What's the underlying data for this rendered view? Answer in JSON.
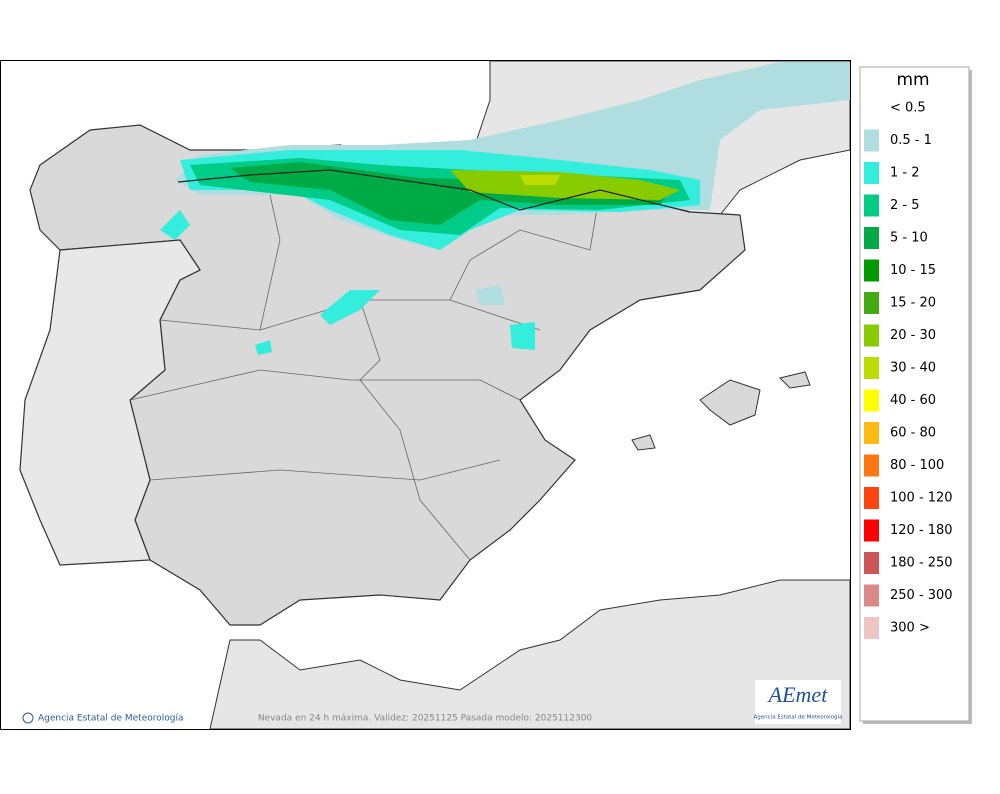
{
  "map": {
    "caption": "Nevada en 24 h máxima. Validez: 20251125 Pasada modelo: 2025112300",
    "credit": "Agencia Estatal de Meteorología",
    "logo": {
      "text": "AEmet",
      "subtitle": "Agencia Estatal de Meteorología"
    }
  },
  "legend": {
    "unit": "mm",
    "items": [
      {
        "label": "< 0.5",
        "color": "#ffffff"
      },
      {
        "label": "0.5 - 1",
        "color": "#b0dde0"
      },
      {
        "label": "1 - 2",
        "color": "#33eedd"
      },
      {
        "label": "2 - 5",
        "color": "#00cc88"
      },
      {
        "label": "5 - 10",
        "color": "#00aa44"
      },
      {
        "label": "10 - 15",
        "color": "#009900"
      },
      {
        "label": "15 - 20",
        "color": "#44aa11"
      },
      {
        "label": "20 - 30",
        "color": "#88cc00"
      },
      {
        "label": "30 - 40",
        "color": "#bbdd00"
      },
      {
        "label": "40 - 60",
        "color": "#ffff00"
      },
      {
        "label": "60 - 80",
        "color": "#ffbb11"
      },
      {
        "label": "80 - 100",
        "color": "#ff7711"
      },
      {
        "label": "100 - 120",
        "color": "#ff4411"
      },
      {
        "label": "120 - 180",
        "color": "#ff0000"
      },
      {
        "label": "180 - 250",
        "color": "#cc5555"
      },
      {
        "label": "250 - 300",
        "color": "#dd8888"
      },
      {
        "label": "300 >",
        "color": "#eec4c4"
      }
    ]
  }
}
